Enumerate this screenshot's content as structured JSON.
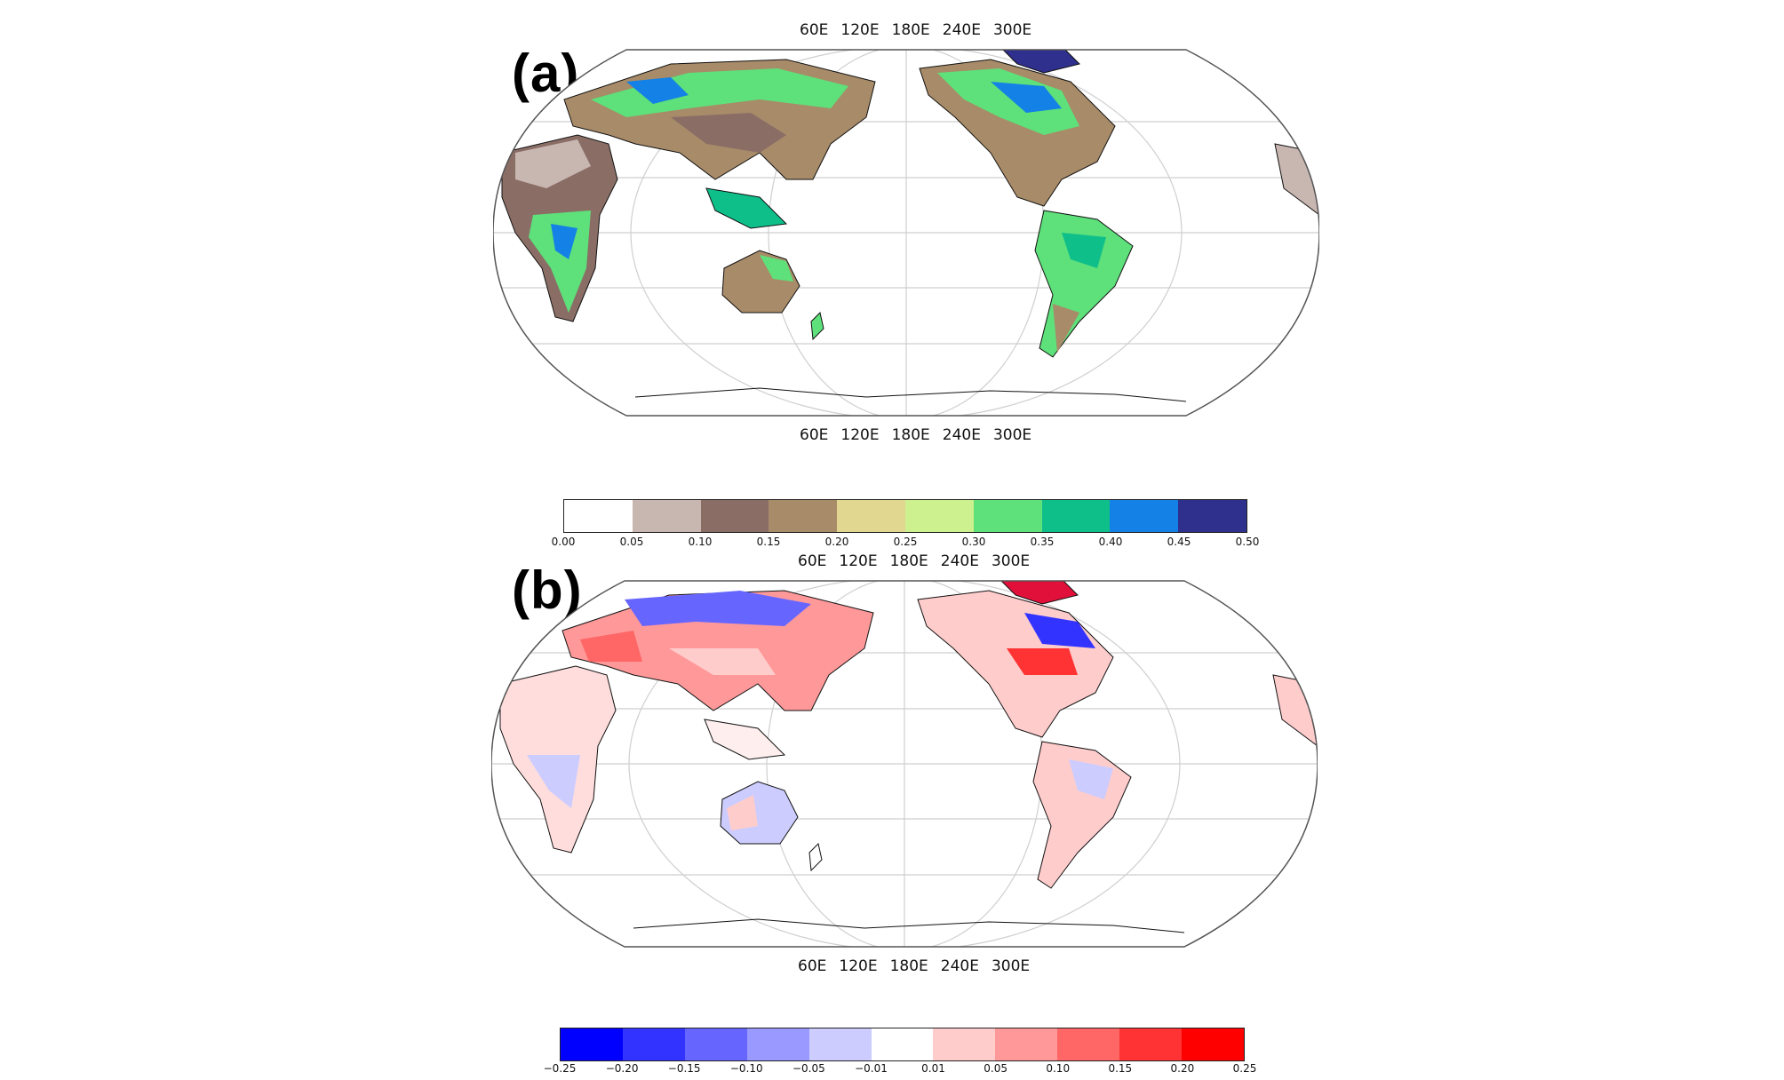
{
  "panel_a": {
    "label": "(a)",
    "lon_top": [
      "60E",
      "120E",
      "180E",
      "240E",
      "300E"
    ],
    "lon_bottom": [
      "60E",
      "120E",
      "180E",
      "240E",
      "300E"
    ],
    "colorbar": {
      "colors": [
        "#ffffff",
        "#c8b6b1",
        "#8a6e66",
        "#a88b68",
        "#e2d790",
        "#cdf18f",
        "#5ee07a",
        "#0fbf8a",
        "#1381e6",
        "#2f2f8e"
      ],
      "ticks": [
        "0.00",
        "0.05",
        "0.10",
        "0.15",
        "0.20",
        "0.25",
        "0.30",
        "0.35",
        "0.40",
        "0.45",
        "0.50"
      ]
    }
  },
  "panel_b": {
    "label": "(b)",
    "lon_top": [
      "60E",
      "120E",
      "180E",
      "240E",
      "300E"
    ],
    "lon_bottom": [
      "60E",
      "120E",
      "180E",
      "240E",
      "300E"
    ],
    "colorbar": {
      "colors": [
        "#0000ff",
        "#3333ff",
        "#6666ff",
        "#9999ff",
        "#ccccff",
        "#ffffff",
        "#ffcccc",
        "#ff9999",
        "#ff6666",
        "#ff3333",
        "#ff0000"
      ],
      "ticks": [
        "−0.25",
        "−0.20",
        "−0.15",
        "−0.10",
        "−0.05",
        "−0.01",
        "0.01",
        "0.05",
        "0.10",
        "0.15",
        "0.20",
        "0.25"
      ]
    }
  }
}
